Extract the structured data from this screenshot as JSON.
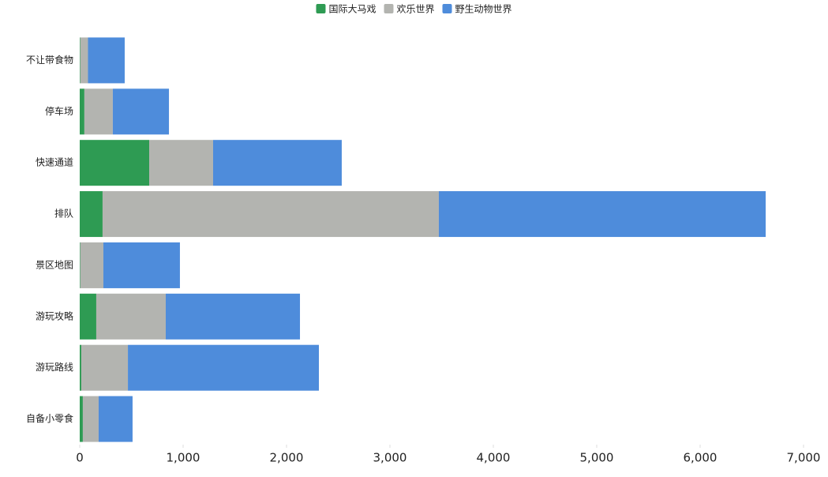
{
  "chart_data": {
    "type": "stacked-horizontal-bar",
    "categories": [
      "不让带食物",
      "停车场",
      "快速通道",
      "排队",
      "景区地图",
      "游玩攻略",
      "游玩路线",
      "自备小零食"
    ],
    "series": [
      {
        "name": "国际大马戏",
        "color": "#2e9b53",
        "values": [
          5,
          45,
          672,
          221,
          5,
          160,
          15,
          30
        ]
      },
      {
        "name": "欢乐世界",
        "color": "#b3b4b0",
        "values": [
          75,
          275,
          618,
          3252,
          224,
          672,
          451,
          153
        ]
      },
      {
        "name": "野生动物世界",
        "color": "#4e8cdb",
        "values": [
          355,
          543,
          1244,
          3161,
          740,
          1298,
          1847,
          328
        ]
      }
    ],
    "xlim": [
      0,
      7000
    ],
    "xticks": [
      0,
      {
        "value": 1000,
        "label": "1,000"
      },
      {
        "value": 2000,
        "label": "2,000"
      },
      {
        "value": 3000,
        "label": "3,000"
      },
      {
        "value": 4000,
        "label": "4,000"
      },
      {
        "value": 5000,
        "label": "5,000"
      },
      {
        "value": 6000,
        "label": "6,000"
      },
      {
        "value": 7000,
        "label": "7,000"
      }
    ],
    "legend": "top"
  }
}
